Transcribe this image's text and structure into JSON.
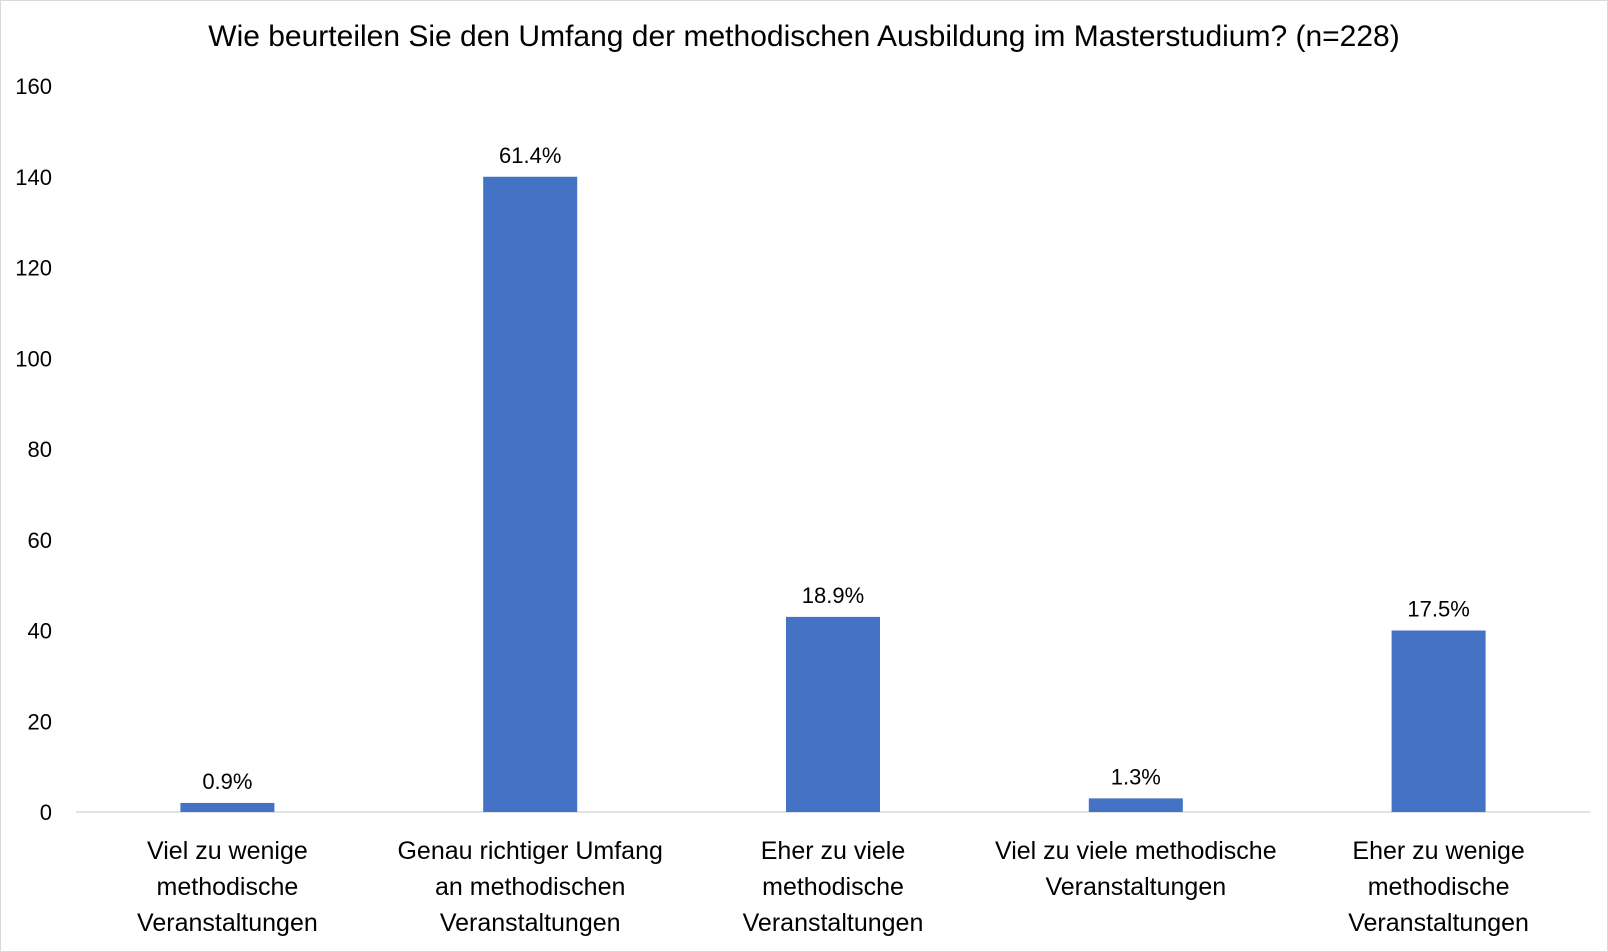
{
  "chart_data": {
    "type": "bar",
    "title": "Wie beurteilen Sie den Umfang der methodischen Ausbildung im Masterstudium? (n=228)",
    "xlabel": "",
    "ylabel": "",
    "ylim": [
      0,
      160
    ],
    "yticks": [
      "0",
      "20",
      "40",
      "60",
      "80",
      "100",
      "120",
      "140",
      "160"
    ],
    "grid": false,
    "categories": [
      [
        "Viel zu wenige",
        "methodische",
        "Veranstaltungen"
      ],
      [
        "Genau richtiger Umfang",
        "an methodischen",
        "Veranstaltungen"
      ],
      [
        "Eher zu viele",
        "methodische",
        "Veranstaltungen"
      ],
      [
        "Viel zu viele methodische",
        "Veranstaltungen"
      ],
      [
        "Eher zu wenige",
        "methodische",
        "Veranstaltungen"
      ]
    ],
    "values": [
      2,
      140,
      43,
      3,
      40
    ],
    "data_labels": [
      "0.9%",
      "61.4%",
      "18.9%",
      "1.3%",
      "17.5%"
    ],
    "bar_color": "#4472C4"
  }
}
